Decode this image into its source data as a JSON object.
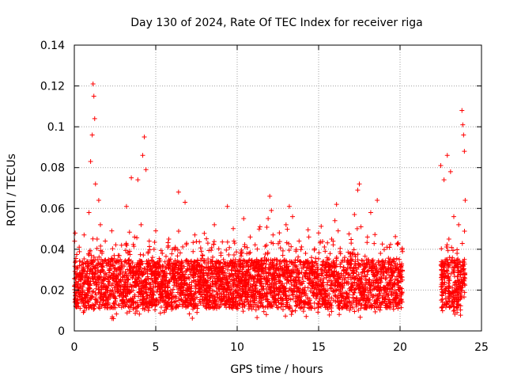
{
  "chart_data": {
    "type": "scatter",
    "title": "Day 130 of 2024, Rate Of TEC Index for receiver riga",
    "xlabel": "GPS time / hours",
    "ylabel": "ROTI / TECUs",
    "xlim": [
      0,
      25
    ],
    "ylim": [
      0,
      0.14
    ],
    "x_ticks": [
      0,
      5,
      10,
      15,
      20,
      25
    ],
    "y_ticks": [
      0,
      0.02,
      0.04,
      0.06,
      0.08,
      0.1,
      0.12,
      0.14
    ],
    "x_tick_labels": [
      "0",
      "5",
      "10",
      "15",
      "20",
      "25"
    ],
    "y_tick_labels": [
      "0",
      "0.02",
      "0.04",
      "0.06",
      "0.08",
      "0.1",
      "0.12",
      "0.14"
    ],
    "grid": true,
    "marker": "+",
    "color": "#ff0000",
    "series": [
      {
        "name": "",
        "points": [
          [
            0.0,
            0.022
          ],
          [
            0.1,
            0.031
          ],
          [
            0.2,
            0.015
          ],
          [
            0.3,
            0.041
          ],
          [
            0.4,
            0.027
          ],
          [
            0.5,
            0.019
          ],
          [
            0.6,
            0.047
          ],
          [
            0.7,
            0.033
          ],
          [
            0.8,
            0.024
          ],
          [
            0.9,
            0.058
          ],
          [
            1.0,
            0.083
          ],
          [
            1.1,
            0.096
          ],
          [
            1.15,
            0.121
          ],
          [
            1.2,
            0.115
          ],
          [
            1.25,
            0.104
          ],
          [
            1.3,
            0.072
          ],
          [
            1.4,
            0.045
          ],
          [
            1.5,
            0.064
          ],
          [
            1.6,
            0.052
          ],
          [
            1.7,
            0.038
          ],
          [
            1.8,
            0.029
          ],
          [
            1.9,
            0.044
          ],
          [
            2.0,
            0.021
          ],
          [
            2.1,
            0.035
          ],
          [
            2.2,
            0.026
          ],
          [
            2.3,
            0.049
          ],
          [
            2.4,
            0.006
          ],
          [
            2.5,
            0.031
          ],
          [
            2.6,
            0.023
          ],
          [
            2.7,
            0.037
          ],
          [
            2.8,
            0.028
          ],
          [
            2.9,
            0.042
          ],
          [
            3.0,
            0.019
          ],
          [
            3.1,
            0.034
          ],
          [
            3.2,
            0.061
          ],
          [
            3.3,
            0.025
          ],
          [
            3.4,
            0.039
          ],
          [
            3.5,
            0.075
          ],
          [
            3.6,
            0.027
          ],
          [
            3.7,
            0.046
          ],
          [
            3.8,
            0.022
          ],
          [
            3.9,
            0.074
          ],
          [
            4.0,
            0.033
          ],
          [
            4.1,
            0.052
          ],
          [
            4.2,
            0.086
          ],
          [
            4.3,
            0.095
          ],
          [
            4.4,
            0.079
          ],
          [
            4.5,
            0.028
          ],
          [
            4.6,
            0.044
          ],
          [
            4.7,
            0.021
          ],
          [
            4.8,
            0.036
          ],
          [
            4.9,
            0.027
          ],
          [
            5.0,
            0.049
          ],
          [
            5.2,
            0.023
          ],
          [
            5.4,
            0.038
          ],
          [
            5.6,
            0.031
          ],
          [
            5.8,
            0.045
          ],
          [
            6.0,
            0.026
          ],
          [
            6.2,
            0.041
          ],
          [
            6.4,
            0.068
          ],
          [
            6.6,
            0.029
          ],
          [
            6.8,
            0.063
          ],
          [
            7.0,
            0.034
          ],
          [
            7.2,
            0.022
          ],
          [
            7.4,
            0.047
          ],
          [
            7.6,
            0.028
          ],
          [
            7.8,
            0.039
          ],
          [
            8.0,
            0.024
          ],
          [
            8.2,
            0.043
          ],
          [
            8.4,
            0.031
          ],
          [
            8.6,
            0.052
          ],
          [
            8.8,
            0.026
          ],
          [
            9.0,
            0.037
          ],
          [
            9.2,
            0.021
          ],
          [
            9.4,
            0.061
          ],
          [
            9.6,
            0.033
          ],
          [
            9.8,
            0.044
          ],
          [
            10.0,
            0.027
          ],
          [
            10.2,
            0.038
          ],
          [
            10.4,
            0.055
          ],
          [
            10.6,
            0.029
          ],
          [
            10.8,
            0.046
          ],
          [
            11.0,
            0.023
          ],
          [
            11.2,
            0.035
          ],
          [
            11.4,
            0.051
          ],
          [
            11.6,
            0.028
          ],
          [
            11.8,
            0.042
          ],
          [
            11.9,
            0.055
          ],
          [
            12.0,
            0.066
          ],
          [
            12.1,
            0.059
          ],
          [
            12.2,
            0.047
          ],
          [
            12.4,
            0.031
          ],
          [
            12.6,
            0.024
          ],
          [
            12.8,
            0.037
          ],
          [
            13.0,
            0.052
          ],
          [
            13.2,
            0.061
          ],
          [
            13.4,
            0.056
          ],
          [
            13.6,
            0.029
          ],
          [
            13.8,
            0.044
          ],
          [
            14.0,
            0.026
          ],
          [
            14.2,
            0.038
          ],
          [
            14.4,
            0.046
          ],
          [
            14.6,
            0.022
          ],
          [
            14.8,
            0.034
          ],
          [
            15.0,
            0.048
          ],
          [
            15.2,
            0.027
          ],
          [
            15.4,
            0.039
          ],
          [
            15.6,
            0.031
          ],
          [
            15.8,
            0.045
          ],
          [
            16.0,
            0.054
          ],
          [
            16.1,
            0.062
          ],
          [
            16.2,
            0.049
          ],
          [
            16.4,
            0.028
          ],
          [
            16.6,
            0.036
          ],
          [
            16.8,
            0.024
          ],
          [
            17.0,
            0.043
          ],
          [
            17.2,
            0.057
          ],
          [
            17.4,
            0.069
          ],
          [
            17.5,
            0.072
          ],
          [
            17.6,
            0.051
          ],
          [
            17.8,
            0.033
          ],
          [
            18.0,
            0.046
          ],
          [
            18.2,
            0.058
          ],
          [
            18.4,
            0.027
          ],
          [
            18.6,
            0.064
          ],
          [
            18.8,
            0.038
          ],
          [
            19.0,
            0.029
          ],
          [
            19.2,
            0.041
          ],
          [
            19.4,
            0.023
          ],
          [
            19.6,
            0.035
          ],
          [
            19.8,
            0.031
          ],
          [
            20.0,
            0.027
          ],
          [
            20.1,
            0.019
          ],
          [
            22.5,
            0.081
          ],
          [
            22.6,
            0.033
          ],
          [
            22.7,
            0.074
          ],
          [
            22.8,
            0.027
          ],
          [
            22.9,
            0.086
          ],
          [
            23.0,
            0.045
          ],
          [
            23.1,
            0.078
          ],
          [
            23.2,
            0.031
          ],
          [
            23.3,
            0.056
          ],
          [
            23.4,
            0.024
          ],
          [
            23.5,
            0.038
          ],
          [
            23.6,
            0.052
          ],
          [
            23.7,
            0.029
          ],
          [
            23.8,
            0.108
          ],
          [
            23.85,
            0.101
          ],
          [
            23.9,
            0.096
          ],
          [
            23.95,
            0.088
          ],
          [
            24.0,
            0.064
          ]
        ]
      }
    ]
  }
}
